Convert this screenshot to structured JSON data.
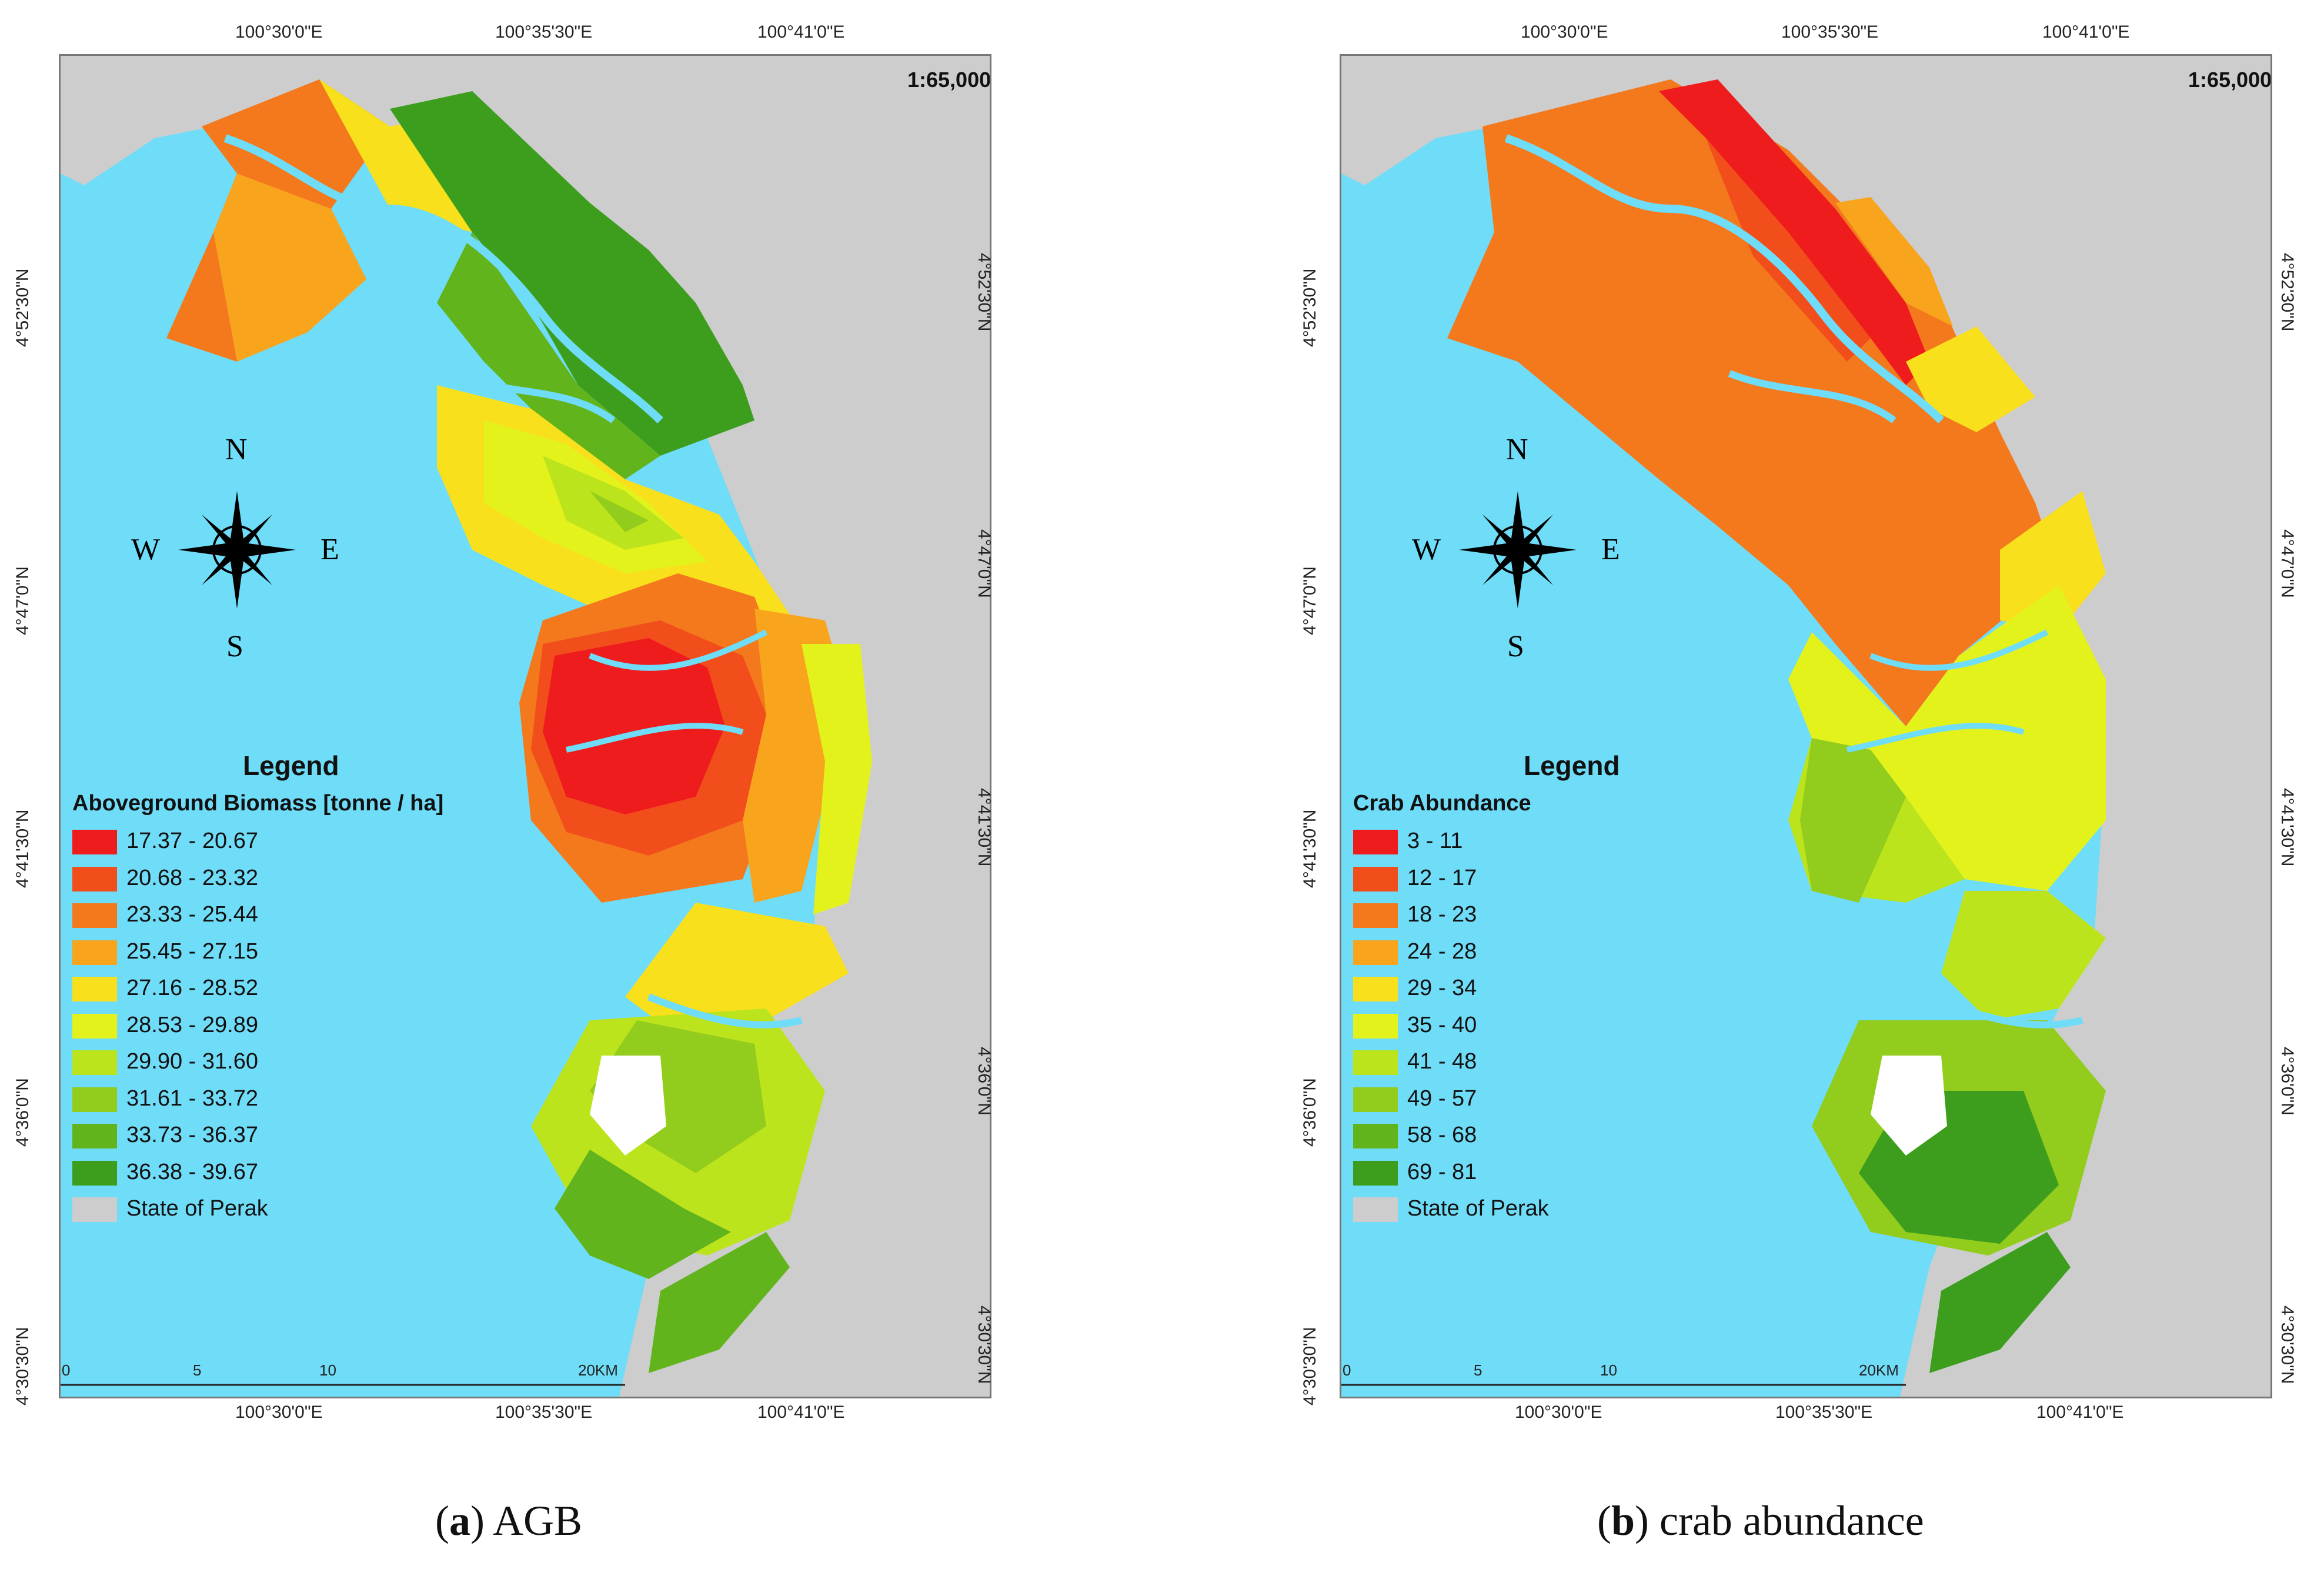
{
  "panels": [
    {
      "id": "a",
      "scale_text": "1:65,000",
      "coords_top": [
        "100°30'0\"E",
        "100°35'30\"E",
        "100°41'0\"E"
      ],
      "coords_bottom": [
        "100°30'0\"E",
        "100°35'30\"E",
        "100°41'0\"E"
      ],
      "coords_left": [
        "4°52'30\"N",
        "4°47'0\"N",
        "4°41'30\"N",
        "4°36'0\"N",
        "4°30'30\"N"
      ],
      "coords_right": [
        "4°52'30\"N",
        "4°47'0\"N",
        "4°41'30\"N",
        "4°36'0\"N",
        "4°30'30\"N"
      ],
      "legend_heading": "Legend",
      "legend_title": "Aboveground Biomass [tonne / ha]",
      "legend_items": [
        {
          "label": "17.37 - 20.67",
          "color": "#ee1c1c"
        },
        {
          "label": "20.68 - 23.32",
          "color": "#f24e1c"
        },
        {
          "label": "23.33 - 25.44",
          "color": "#f4781c"
        },
        {
          "label": "25.45 - 27.15",
          "color": "#f8a41c"
        },
        {
          "label": "27.16 - 28.52",
          "color": "#f8e01c"
        },
        {
          "label": "28.53 - 29.89",
          "color": "#e4f21c"
        },
        {
          "label": "29.90 - 31.60",
          "color": "#bce41c"
        },
        {
          "label": "31.61 - 33.72",
          "color": "#92cc1c"
        },
        {
          "label": "33.73 - 36.37",
          "color": "#62b41c"
        },
        {
          "label": "36.38 - 39.67",
          "color": "#3c9e1c"
        },
        {
          "label": "State of Perak",
          "color": "#cdcdcd"
        }
      ],
      "compass": {
        "n": "N",
        "s": "S",
        "e": "E",
        "w": "W"
      },
      "scalebar_ticks": [
        "0",
        "5",
        "10",
        "20KM"
      ],
      "caption_letter": "a",
      "caption_text": "AGB"
    },
    {
      "id": "b",
      "scale_text": "1:65,000",
      "coords_top": [
        "100°30'0\"E",
        "100°35'30\"E",
        "100°41'0\"E"
      ],
      "coords_bottom": [
        "100°30'0\"E",
        "100°35'30\"E",
        "100°41'0\"E"
      ],
      "coords_left": [
        "4°52'30\"N",
        "4°47'0\"N",
        "4°41'30\"N",
        "4°36'0\"N",
        "4°30'30\"N"
      ],
      "coords_right": [
        "4°52'30\"N",
        "4°47'0\"N",
        "4°41'30\"N",
        "4°36'0\"N",
        "4°30'30\"N"
      ],
      "legend_heading": "Legend",
      "legend_title": "Crab Abundance",
      "legend_items": [
        {
          "label": "3 - 11",
          "color": "#ee1c1c"
        },
        {
          "label": "12 - 17",
          "color": "#f24e1c"
        },
        {
          "label": "18 - 23",
          "color": "#f4781c"
        },
        {
          "label": "24 - 28",
          "color": "#f8a41c"
        },
        {
          "label": "29 - 34",
          "color": "#f8e01c"
        },
        {
          "label": "35 - 40",
          "color": "#e4f21c"
        },
        {
          "label": "41 - 48",
          "color": "#bce41c"
        },
        {
          "label": "49 - 57",
          "color": "#92cc1c"
        },
        {
          "label": "58 - 68",
          "color": "#62b41c"
        },
        {
          "label": "69 - 81",
          "color": "#3c9e1c"
        },
        {
          "label": "State of Perak",
          "color": "#cdcdcd"
        }
      ],
      "compass": {
        "n": "N",
        "s": "S",
        "e": "E",
        "w": "W"
      },
      "scalebar_ticks": [
        "0",
        "5",
        "10",
        "20KM"
      ],
      "caption_letter": "b",
      "caption_text": "crab abundance"
    }
  ],
  "colors": {
    "sea": "#6fdcf8",
    "land": "#cdcdcd",
    "river": "#6fdcf8"
  }
}
